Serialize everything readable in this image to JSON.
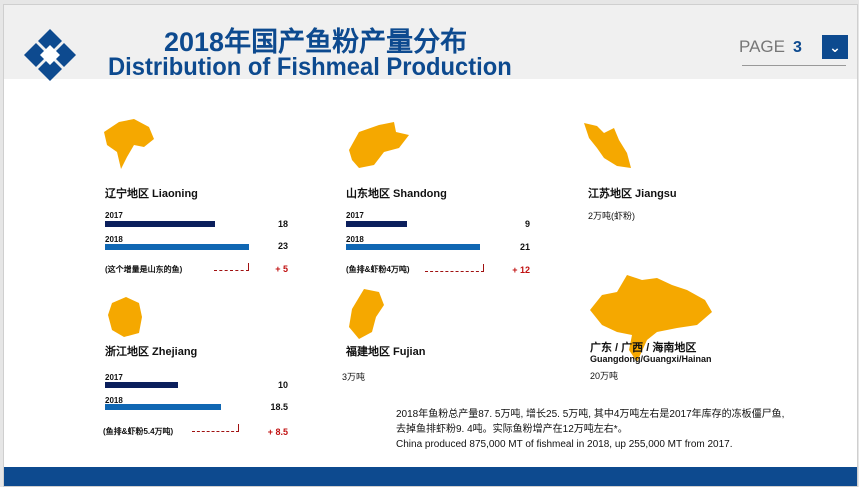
{
  "header": {
    "title_cn": "2018年国产鱼粉产量分布",
    "title_en": "Distribution of Fishmeal Production",
    "page_label": "PAGE",
    "page_number": "3",
    "next_icon": "chevron-down-icon"
  },
  "colors": {
    "brand": "#0d4a8f",
    "map": "#f5a800",
    "bar_2017": "#0b1f5c",
    "bar_2018": "#1067b3",
    "increase": "#c01010"
  },
  "regions": {
    "liaoning": {
      "title": "辽宁地区 Liaoning",
      "y2017_label": "2017",
      "y2017": "18",
      "y2018_label": "2018",
      "y2018": "23",
      "note": "(这个增量是山东的鱼)",
      "increase": "+ 5"
    },
    "shandong": {
      "title": "山东地区 Shandong",
      "y2017_label": "2017",
      "y2017": "9",
      "y2018_label": "2018",
      "y2018": "21",
      "note": "(鱼排&虾粉4万吨)",
      "increase": "+ 12"
    },
    "jiangsu": {
      "title": "江苏地区 Jiangsu",
      "text": "2万吨(虾粉)"
    },
    "zhejiang": {
      "title": "浙江地区 Zhejiang",
      "y2017_label": "2017",
      "y2017": "10",
      "y2018_label": "2018",
      "y2018": "18.5",
      "note": "(鱼排&虾粉5.4万吨)",
      "increase": "+ 8.5"
    },
    "fujian": {
      "title": "福建地区 Fujian",
      "text": "3万吨"
    },
    "guangdong": {
      "title": "广东 / 广西 / 海南地区",
      "subtitle": "Guangdong/Guangxi/Hainan",
      "text": "20万吨"
    }
  },
  "summary": {
    "line1": "2018年鱼粉总产量87. 5万吨, 增长25. 5万吨, 其中4万吨左右是2017年库存的冻板僵尸鱼,",
    "line2": "去掉鱼排虾粉9. 4吨。实际鱼粉增产在12万吨左右*。",
    "line3": "China produced 875,000 MT of fishmeal in 2018, up 255,000 MT from 2017."
  }
}
